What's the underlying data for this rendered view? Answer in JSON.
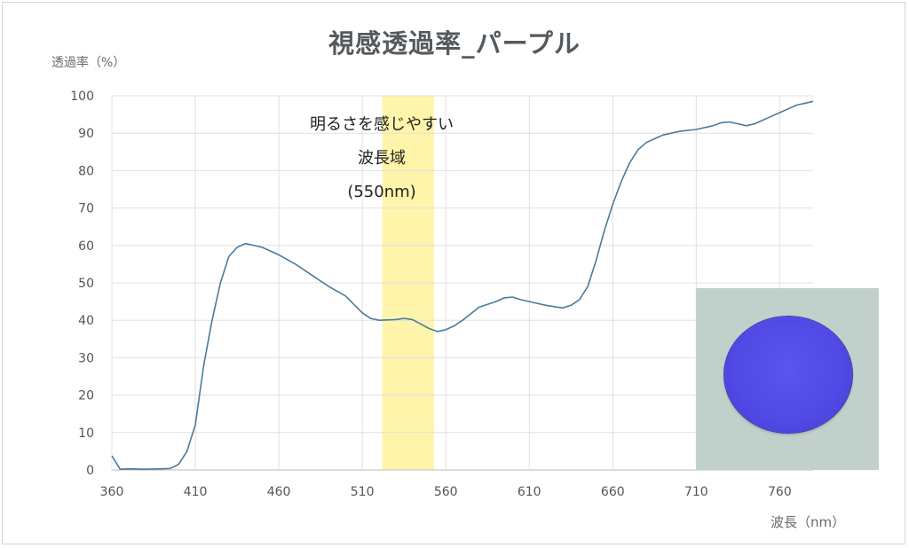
{
  "chart_data": {
    "type": "line",
    "title": "視感透過率_パープル",
    "ylabel": "透過率（%）",
    "xlabel": "波長（nm）",
    "xlim": [
      360,
      780
    ],
    "ylim": [
      0,
      100
    ],
    "x_ticks": [
      360,
      410,
      460,
      510,
      560,
      610,
      660,
      710,
      760
    ],
    "y_ticks": [
      0,
      10,
      20,
      30,
      40,
      50,
      60,
      70,
      80,
      90,
      100
    ],
    "grid": true,
    "highlight_band": {
      "x_range": [
        522,
        553
      ],
      "color": "#fff5aa"
    },
    "annotation": [
      "明るさを感じやすい",
      "波長域",
      "(550nm)"
    ],
    "series": [
      {
        "color": "#4a7a9c",
        "x": [
          360,
          365,
          370,
          380,
          390,
          395,
          400,
          405,
          410,
          415,
          420,
          425,
          430,
          435,
          440,
          450,
          460,
          470,
          480,
          490,
          500,
          510,
          515,
          520,
          530,
          535,
          540,
          545,
          550,
          555,
          560,
          565,
          570,
          580,
          590,
          595,
          600,
          605,
          610,
          620,
          630,
          635,
          640,
          645,
          650,
          655,
          660,
          665,
          670,
          675,
          680,
          685,
          690,
          700,
          710,
          720,
          725,
          730,
          735,
          740,
          745,
          750,
          755,
          760,
          765,
          770,
          780
        ],
        "y": [
          3.8,
          0.2,
          0.3,
          0.2,
          0.3,
          0.4,
          1.5,
          5,
          12,
          28,
          40,
          50,
          57,
          59.5,
          60.5,
          59.5,
          57.5,
          55,
          52,
          49,
          46.5,
          42,
          40.5,
          40,
          40.2,
          40.5,
          40.2,
          39,
          37.8,
          37,
          37.5,
          38.5,
          40,
          43.5,
          45,
          46,
          46.2,
          45.5,
          45,
          44,
          43.3,
          44,
          45.5,
          49,
          56,
          64,
          71,
          77,
          82,
          85.5,
          87.5,
          88.5,
          89.5,
          90.5,
          91,
          92,
          92.8,
          93,
          92.5,
          92,
          92.5,
          93.5,
          94.5,
          95.5,
          96.5,
          97.5,
          98.5
        ]
      }
    ]
  }
}
